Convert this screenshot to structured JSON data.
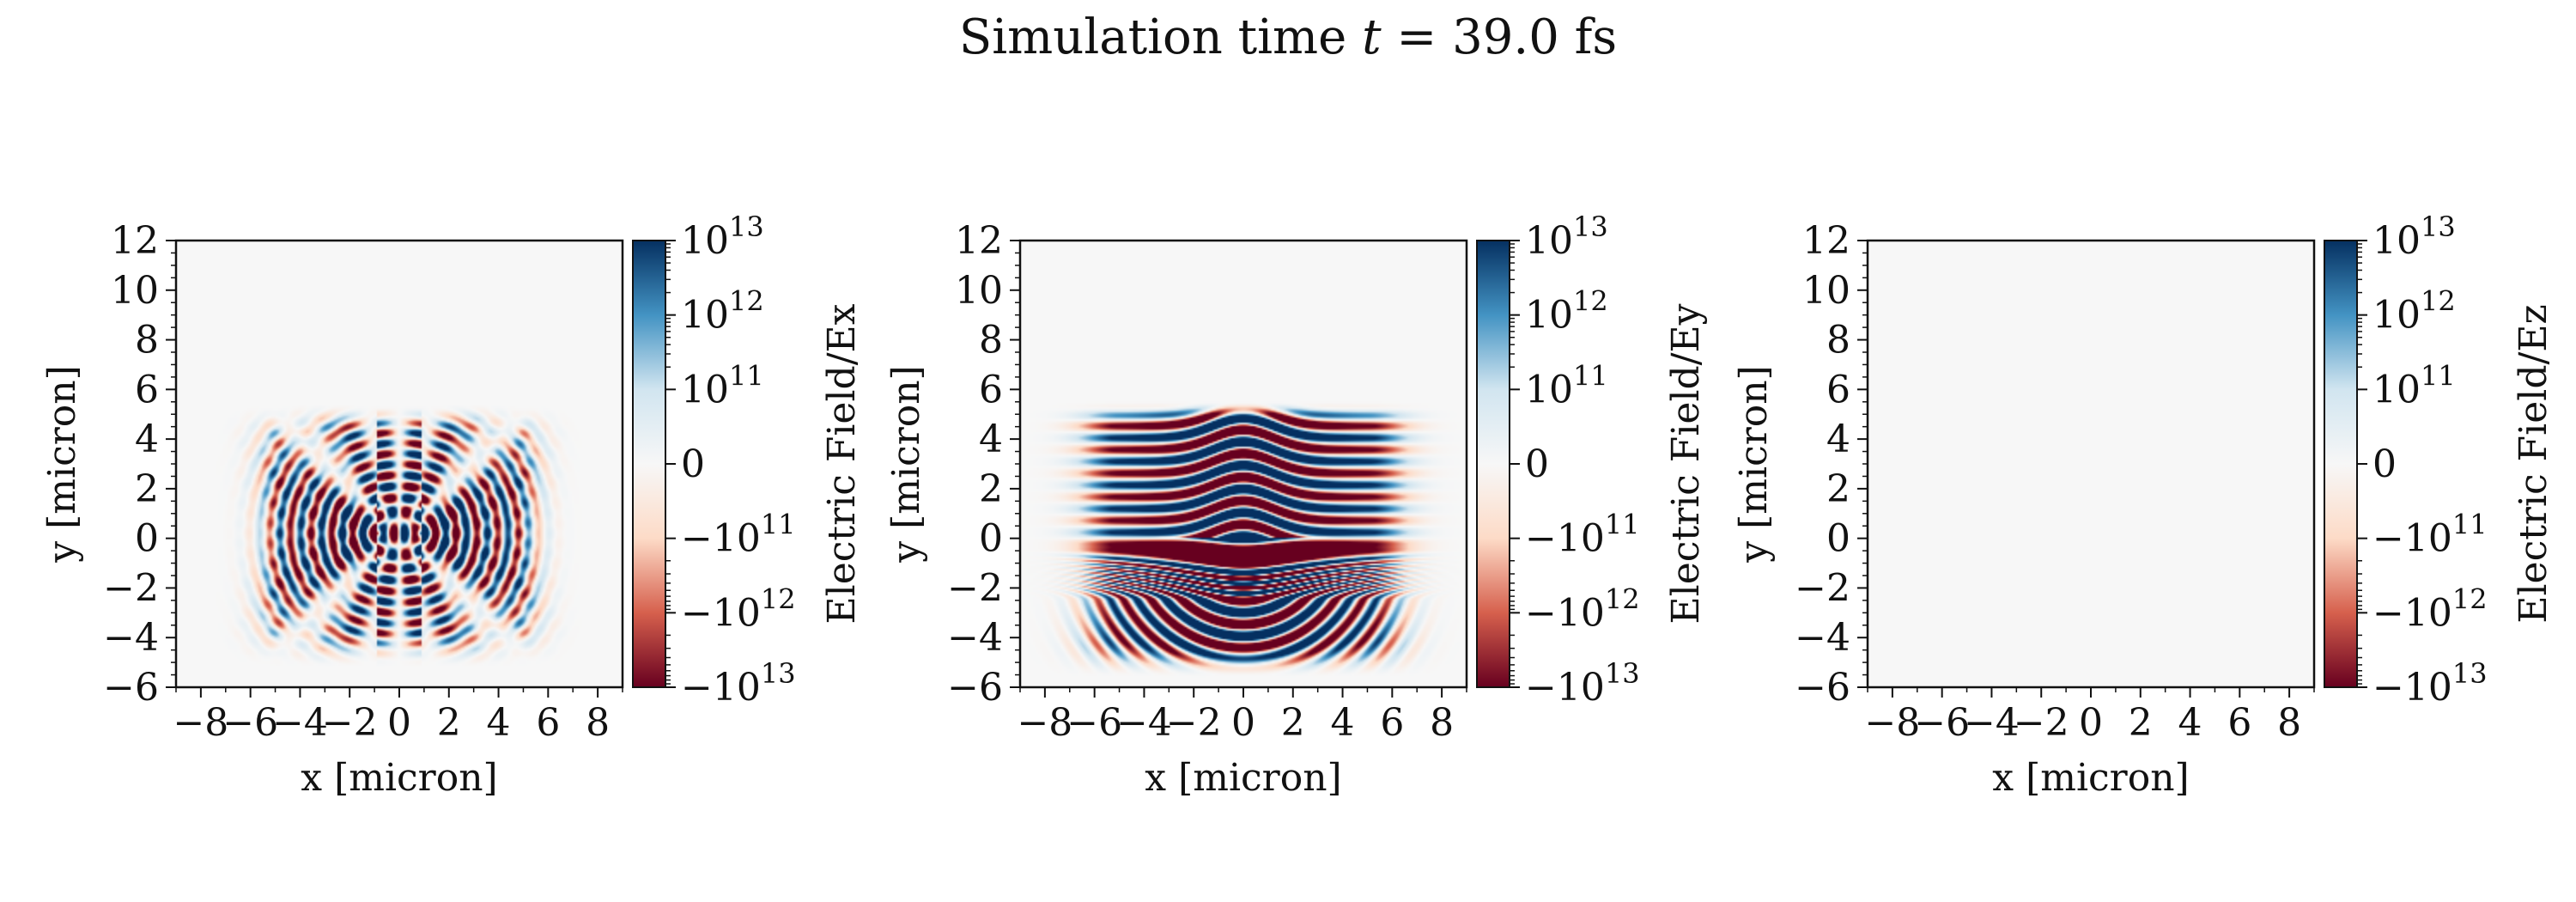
{
  "figure": {
    "title_prefix": "Simulation time ",
    "title_var": "t",
    "title_suffix": " = 39.0 fs"
  },
  "colors": {
    "neg_dark": "#67001f",
    "neg_mid": "#d6604d",
    "neg_light": "#fddbc7",
    "zero": "#f7f7f7",
    "pos_light": "#d1e5f0",
    "pos_mid": "#4393c3",
    "pos_dark": "#053061"
  },
  "chart_data": [
    {
      "type": "heatmap",
      "field": "Ex",
      "pattern": "ex_rings",
      "xlabel": "x [micron]",
      "ylabel": "y [micron]",
      "xlim": [
        -9,
        9
      ],
      "ylim": [
        -6,
        12
      ],
      "xticks": [
        "−8",
        "−6",
        "−4",
        "−2",
        "0",
        "2",
        "4",
        "6",
        "8"
      ],
      "xtick_values": [
        -8,
        -6,
        -4,
        -2,
        0,
        2,
        4,
        6,
        8
      ],
      "yticks": [
        "−6",
        "−4",
        "−2",
        "0",
        "2",
        "4",
        "6",
        "8",
        "10",
        "12"
      ],
      "ytick_values": [
        -6,
        -4,
        -2,
        0,
        2,
        4,
        6,
        8,
        10,
        12
      ],
      "colorbar": {
        "label": "Electric Field/Ex",
        "scale": "symlog",
        "ticks": [
          {
            "base": "10",
            "exp": "13",
            "sign": ""
          },
          {
            "base": "10",
            "exp": "12",
            "sign": ""
          },
          {
            "base": "10",
            "exp": "11",
            "sign": ""
          },
          {
            "base": "0",
            "exp": "",
            "sign": ""
          },
          {
            "base": "10",
            "exp": "11",
            "sign": "−"
          },
          {
            "base": "10",
            "exp": "12",
            "sign": "−"
          },
          {
            "base": "10",
            "exp": "13",
            "sign": "−"
          }
        ]
      }
    },
    {
      "type": "heatmap",
      "field": "Ey",
      "pattern": "ey_bands",
      "xlabel": "x [micron]",
      "ylabel": "y [micron]",
      "xlim": [
        -9,
        9
      ],
      "ylim": [
        -6,
        12
      ],
      "xticks": [
        "−8",
        "−6",
        "−4",
        "−2",
        "0",
        "2",
        "4",
        "6",
        "8"
      ],
      "xtick_values": [
        -8,
        -6,
        -4,
        -2,
        0,
        2,
        4,
        6,
        8
      ],
      "yticks": [
        "−6",
        "−4",
        "−2",
        "0",
        "2",
        "4",
        "6",
        "8",
        "10",
        "12"
      ],
      "ytick_values": [
        -6,
        -4,
        -2,
        0,
        2,
        4,
        6,
        8,
        10,
        12
      ],
      "colorbar": {
        "label": "Electric Field/Ey",
        "scale": "symlog",
        "ticks": [
          {
            "base": "10",
            "exp": "13",
            "sign": ""
          },
          {
            "base": "10",
            "exp": "12",
            "sign": ""
          },
          {
            "base": "10",
            "exp": "11",
            "sign": ""
          },
          {
            "base": "0",
            "exp": "",
            "sign": ""
          },
          {
            "base": "10",
            "exp": "11",
            "sign": "−"
          },
          {
            "base": "10",
            "exp": "12",
            "sign": "−"
          },
          {
            "base": "10",
            "exp": "13",
            "sign": "−"
          }
        ]
      }
    },
    {
      "type": "heatmap",
      "field": "Ez",
      "pattern": "empty",
      "xlabel": "x [micron]",
      "ylabel": "y [micron]",
      "xlim": [
        -9,
        9
      ],
      "ylim": [
        -6,
        12
      ],
      "xticks": [
        "−8",
        "−6",
        "−4",
        "−2",
        "0",
        "2",
        "4",
        "6",
        "8"
      ],
      "xtick_values": [
        -8,
        -6,
        -4,
        -2,
        0,
        2,
        4,
        6,
        8
      ],
      "yticks": [
        "−6",
        "−4",
        "−2",
        "0",
        "2",
        "4",
        "6",
        "8",
        "10",
        "12"
      ],
      "ytick_values": [
        -6,
        -4,
        -2,
        0,
        2,
        4,
        6,
        8,
        10,
        12
      ],
      "colorbar": {
        "label": "Electric Field/Ez",
        "scale": "symlog",
        "ticks": [
          {
            "base": "10",
            "exp": "13",
            "sign": ""
          },
          {
            "base": "10",
            "exp": "12",
            "sign": ""
          },
          {
            "base": "10",
            "exp": "11",
            "sign": ""
          },
          {
            "base": "0",
            "exp": "",
            "sign": ""
          },
          {
            "base": "10",
            "exp": "11",
            "sign": "−"
          },
          {
            "base": "10",
            "exp": "12",
            "sign": "−"
          },
          {
            "base": "10",
            "exp": "13",
            "sign": "−"
          }
        ]
      }
    }
  ]
}
